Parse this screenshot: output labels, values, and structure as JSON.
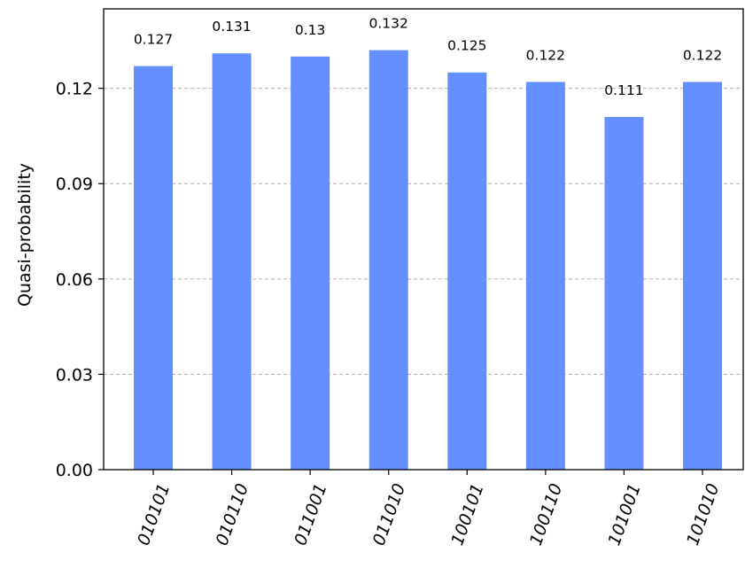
{
  "chart_data": {
    "type": "bar",
    "categories": [
      "010101",
      "010110",
      "011001",
      "011010",
      "100101",
      "100110",
      "101001",
      "101010"
    ],
    "values": [
      0.127,
      0.131,
      0.13,
      0.132,
      0.125,
      0.122,
      0.111,
      0.122
    ],
    "value_labels": [
      "0.127",
      "0.131",
      "0.13",
      "0.132",
      "0.125",
      "0.122",
      "0.111",
      "0.122"
    ],
    "title": "",
    "xlabel": "",
    "ylabel": "Quasi-probability",
    "ylim": [
      0,
      0.145
    ],
    "yticks": [
      0,
      0.03,
      0.06,
      0.09,
      0.12
    ],
    "ytick_labels": [
      "0.00",
      "0.03",
      "0.06",
      "0.09",
      "0.12"
    ],
    "grid": "y-dashed",
    "bar_color": "#648fff",
    "grid_color": "#b0b0b0",
    "x_tick_rotation_deg": 70
  }
}
